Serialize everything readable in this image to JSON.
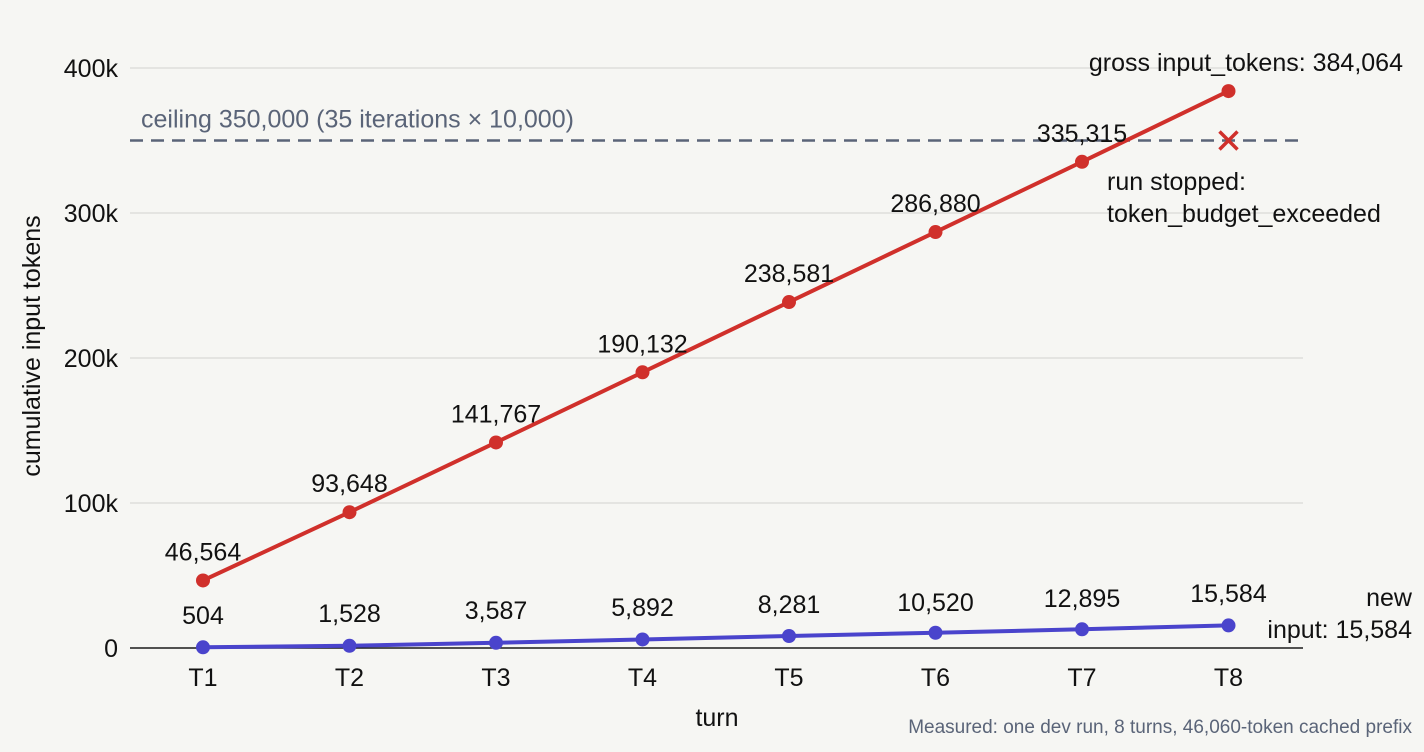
{
  "chart_data": {
    "type": "line",
    "xlabel": "turn",
    "ylabel": "cumulative input tokens",
    "categories": [
      "T1",
      "T2",
      "T3",
      "T4",
      "T5",
      "T6",
      "T7",
      "T8"
    ],
    "ylim": [
      0,
      400000
    ],
    "yticks": [
      0,
      100000,
      200000,
      300000,
      400000
    ],
    "ytick_labels": [
      "0",
      "100k",
      "200k",
      "300k",
      "400k"
    ],
    "grid": true,
    "series": [
      {
        "values": [
          46564,
          93648,
          141767,
          190132,
          238581,
          286880,
          335315,
          384064
        ],
        "labels": [
          "46,564",
          "93,648",
          "141,767",
          "190,132",
          "238,581",
          "286,880",
          "335,315",
          ""
        ],
        "color": "#d0302b"
      },
      {
        "values": [
          504,
          1528,
          3587,
          5892,
          8281,
          10520,
          12895,
          15584
        ],
        "labels": [
          "504",
          "1,528",
          "3,587",
          "5,892",
          "8,281",
          "10,520",
          "12,895",
          "15,584"
        ],
        "color": "#4a44cc"
      }
    ],
    "ceiling": {
      "value": 350000,
      "label": "ceiling 350,000 (35 iterations × 10,000)",
      "color": "#5a6478"
    },
    "stop_marker": {
      "category": "T8",
      "value": 350000,
      "color": "#d0302b"
    },
    "annotations": {
      "gross_end": "gross input_tokens: 384,064",
      "stop_line1": "run stopped:",
      "stop_line2": "token_budget_exceeded",
      "new_line1": "new",
      "new_line2": "input: 15,584"
    },
    "footnote": "Measured: one dev run, 8 turns, 46,060-token cached prefix"
  }
}
